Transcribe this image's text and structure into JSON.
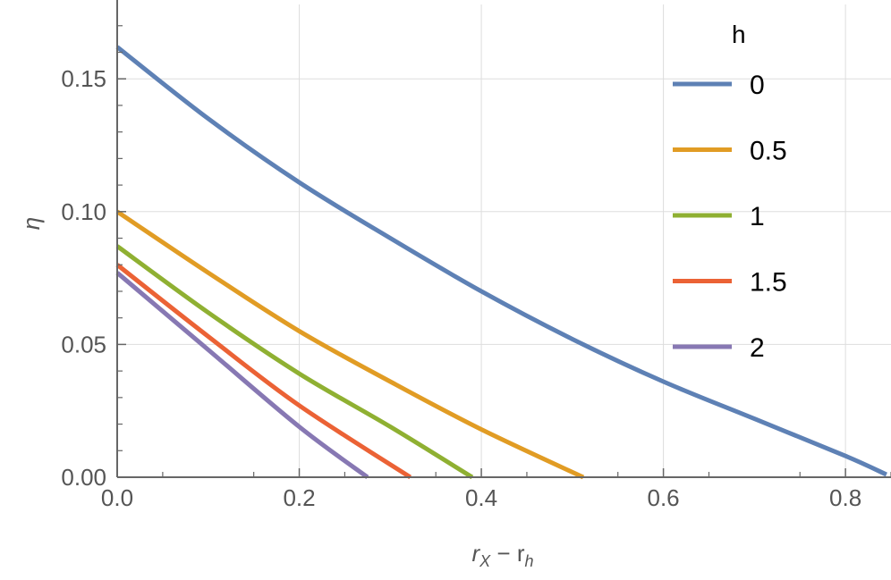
{
  "chart_data": {
    "type": "line",
    "xlabel": {
      "main": "r",
      "sub1": "X",
      "mid": " − r",
      "sub2": "h"
    },
    "ylabel": "η",
    "xlim": [
      0,
      0.85
    ],
    "ylim": [
      0,
      0.178
    ],
    "xticks": [
      "0.0",
      "0.2",
      "0.4",
      "0.6",
      "0.8"
    ],
    "xtick_values": [
      0,
      0.2,
      0.4,
      0.6,
      0.8
    ],
    "yticks": [
      "0.00",
      "0.05",
      "0.10",
      "0.15"
    ],
    "ytick_values": [
      0,
      0.05,
      0.1,
      0.15
    ],
    "grid": true,
    "legend": {
      "title": "h",
      "placement": "top-right"
    },
    "series": [
      {
        "name": "0",
        "color": "#5E81B5",
        "x": [
          0,
          0.1,
          0.2,
          0.3,
          0.4,
          0.5,
          0.6,
          0.7,
          0.8,
          0.845
        ],
        "y": [
          0.162,
          0.135,
          0.111,
          0.09,
          0.07,
          0.052,
          0.036,
          0.022,
          0.008,
          0.001
        ]
      },
      {
        "name": "0.5",
        "color": "#E19C24",
        "x": [
          0,
          0.1,
          0.2,
          0.3,
          0.4,
          0.512
        ],
        "y": [
          0.1,
          0.077,
          0.055,
          0.036,
          0.018,
          0
        ]
      },
      {
        "name": "1",
        "color": "#8FB032",
        "x": [
          0,
          0.1,
          0.2,
          0.3,
          0.39
        ],
        "y": [
          0.087,
          0.062,
          0.039,
          0.019,
          0
        ]
      },
      {
        "name": "1.5",
        "color": "#EB6235",
        "x": [
          0,
          0.1,
          0.2,
          0.322
        ],
        "y": [
          0.08,
          0.053,
          0.027,
          0
        ]
      },
      {
        "name": "2",
        "color": "#8778B3",
        "x": [
          0,
          0.1,
          0.2,
          0.275
        ],
        "y": [
          0.077,
          0.048,
          0.019,
          0
        ]
      }
    ]
  }
}
